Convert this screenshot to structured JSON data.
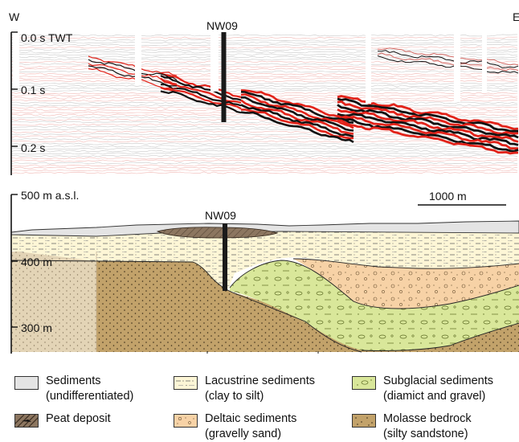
{
  "seismic": {
    "west_label": "W",
    "east_label": "E",
    "ticks": [
      "0.0 s TWT",
      "0.1 s",
      "0.2 s"
    ],
    "borehole_label": "NW09"
  },
  "section": {
    "elevation_labels": [
      "500 m a.s.l.",
      "400 m",
      "300 m"
    ],
    "borehole_label": "NW09",
    "scale_label": "1000 m"
  },
  "legend": [
    {
      "line1": "Sediments",
      "line2": "(undifferentiated)",
      "color": "#e4e4e4",
      "pattern": "plain"
    },
    {
      "line1": "Lacustrine sediments",
      "line2": "(clay to silt)",
      "color": "#fdf6d6",
      "pattern": "dash-dot"
    },
    {
      "line1": "Subglacial sediments",
      "line2": "(diamict and gravel)",
      "color": "#d9e79a",
      "pattern": "pebble"
    },
    {
      "line1": "Peat deposit",
      "line2": "",
      "color": "#8c7660",
      "pattern": "hatch"
    },
    {
      "line1": "Deltaic sediments",
      "line2": "(gravelly sand)",
      "color": "#f7d2a6",
      "pattern": "circle"
    },
    {
      "line1": "Molasse bedrock",
      "line2": "(silty sandstone)",
      "color": "#c2a26a",
      "pattern": "dots"
    }
  ],
  "colors": {
    "sediments": "#e4e4e4",
    "lacustrine": "#fdf6d6",
    "subglacial": "#d9e79a",
    "peat": "#8c7660",
    "deltaic": "#f7d2a6",
    "molasse": "#c2a26a",
    "molasse_faded": "#e3d4b6",
    "seismic_red": "#e2231a"
  }
}
